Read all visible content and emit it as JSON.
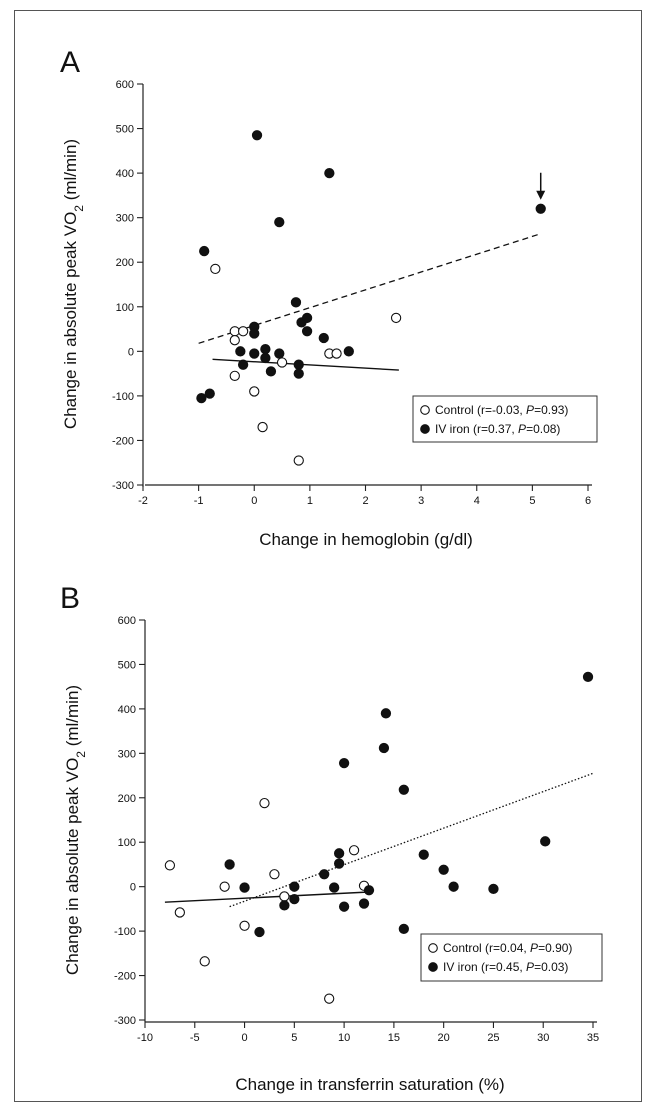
{
  "chart_data": [
    {
      "type": "scatter",
      "panel_label": "A",
      "xlabel": "Change in hemoglobin (g/dl)",
      "ylabel_main": "Change in absolute peak VO",
      "ylabel_sub": "2",
      "ylabel_unit": " (ml/min)",
      "xlim": [
        -2,
        6
      ],
      "ylim": [
        -300,
        600
      ],
      "xticks": [
        -2,
        -1,
        0,
        1,
        2,
        3,
        4,
        5,
        6
      ],
      "yticks": [
        600,
        500,
        400,
        300,
        200,
        100,
        0,
        -100,
        -200,
        -300
      ],
      "legend_position": "bottom-right",
      "series": [
        {
          "name": "Control",
          "name_stats": "Control (r=-0.03, P=0.93)",
          "marker": "open-circle",
          "points": [
            {
              "x": -0.35,
              "y": 45
            },
            {
              "x": -0.35,
              "y": 25
            },
            {
              "x": -0.2,
              "y": 45
            },
            {
              "x": -0.7,
              "y": 185
            },
            {
              "x": -0.35,
              "y": -55
            },
            {
              "x": 0.0,
              "y": -90
            },
            {
              "x": 0.15,
              "y": -170
            },
            {
              "x": 0.5,
              "y": -25
            },
            {
              "x": 0.8,
              "y": -245
            },
            {
              "x": 1.35,
              "y": -5
            },
            {
              "x": 1.48,
              "y": -5
            },
            {
              "x": 2.55,
              "y": 75
            }
          ]
        },
        {
          "name": "IV iron",
          "name_stats": "IV iron (r=0.37, P=0.08)",
          "marker": "filled-circle",
          "points": [
            {
              "x": -0.9,
              "y": 225
            },
            {
              "x": -0.95,
              "y": -105
            },
            {
              "x": -0.8,
              "y": -95
            },
            {
              "x": 0.05,
              "y": 485
            },
            {
              "x": 1.35,
              "y": 400
            },
            {
              "x": 0.45,
              "y": 290
            },
            {
              "x": 5.15,
              "y": 320
            },
            {
              "x": 0.75,
              "y": 110
            },
            {
              "x": 0.85,
              "y": 65
            },
            {
              "x": 0.95,
              "y": 75
            },
            {
              "x": 0.95,
              "y": 45
            },
            {
              "x": 1.25,
              "y": 30
            },
            {
              "x": 1.7,
              "y": 0
            },
            {
              "x": 0.0,
              "y": 55
            },
            {
              "x": 0.0,
              "y": 40
            },
            {
              "x": -0.25,
              "y": 0
            },
            {
              "x": 0.0,
              "y": -5
            },
            {
              "x": 0.2,
              "y": 5
            },
            {
              "x": 0.2,
              "y": -15
            },
            {
              "x": 0.45,
              "y": -5
            },
            {
              "x": -0.2,
              "y": -30
            },
            {
              "x": 0.3,
              "y": -45
            },
            {
              "x": 0.8,
              "y": -30
            },
            {
              "x": 0.8,
              "y": -50
            }
          ]
        }
      ],
      "trendlines": [
        {
          "series": "IV iron",
          "style": "dashed",
          "from": [
            -1.0,
            18
          ],
          "to": [
            5.1,
            262
          ]
        },
        {
          "series": "Control",
          "style": "solid",
          "from": [
            -0.75,
            -18
          ],
          "to": [
            2.6,
            -42
          ]
        }
      ],
      "annotation": {
        "type": "arrow",
        "x": 5.15,
        "y": 320
      }
    },
    {
      "type": "scatter",
      "panel_label": "B",
      "xlabel": "Change in transferrin saturation (%)",
      "ylabel_main": "Change in absolute peak VO",
      "ylabel_sub": "2",
      "ylabel_unit": " (ml/min)",
      "xlim": [
        -10,
        35
      ],
      "ylim": [
        -300,
        600
      ],
      "xticks": [
        -10,
        -5,
        0,
        5,
        10,
        15,
        20,
        25,
        30,
        35
      ],
      "yticks": [
        600,
        500,
        400,
        300,
        200,
        100,
        0,
        -100,
        -200,
        -300
      ],
      "legend_position": "bottom-right",
      "series": [
        {
          "name": "Control",
          "name_stats": "Control (r=0.04, P=0.90)",
          "marker": "open-circle",
          "points": [
            {
              "x": -7.5,
              "y": 48
            },
            {
              "x": -6.5,
              "y": -58
            },
            {
              "x": -2.0,
              "y": 0
            },
            {
              "x": -4.0,
              "y": -168
            },
            {
              "x": 0.0,
              "y": -88
            },
            {
              "x": 2.0,
              "y": 188
            },
            {
              "x": 3.0,
              "y": 28
            },
            {
              "x": 4.0,
              "y": -22
            },
            {
              "x": 8.5,
              "y": -252
            },
            {
              "x": 11.0,
              "y": 82
            },
            {
              "x": 12.0,
              "y": 2
            }
          ]
        },
        {
          "name": "IV iron",
          "name_stats": "IV iron (r=0.45, P=0.03)",
          "marker": "filled-circle",
          "points": [
            {
              "x": -1.5,
              "y": 50
            },
            {
              "x": 0.0,
              "y": -2
            },
            {
              "x": 1.5,
              "y": -102
            },
            {
              "x": 4.0,
              "y": -42
            },
            {
              "x": 5.0,
              "y": 0
            },
            {
              "x": 5.0,
              "y": -28
            },
            {
              "x": 8.0,
              "y": 28
            },
            {
              "x": 9.0,
              "y": -2
            },
            {
              "x": 9.5,
              "y": 52
            },
            {
              "x": 9.5,
              "y": 75
            },
            {
              "x": 10.0,
              "y": -45
            },
            {
              "x": 10.0,
              "y": 278
            },
            {
              "x": 12.0,
              "y": -38
            },
            {
              "x": 12.5,
              "y": -8
            },
            {
              "x": 14.0,
              "y": 312
            },
            {
              "x": 14.2,
              "y": 390
            },
            {
              "x": 16.0,
              "y": 218
            },
            {
              "x": 16.0,
              "y": -95
            },
            {
              "x": 18.0,
              "y": 72
            },
            {
              "x": 20.0,
              "y": 38
            },
            {
              "x": 21.0,
              "y": 0
            },
            {
              "x": 25.0,
              "y": -5
            },
            {
              "x": 30.2,
              "y": 102
            },
            {
              "x": 34.5,
              "y": 472
            }
          ]
        }
      ],
      "trendlines": [
        {
          "series": "IV iron",
          "style": "dotted",
          "from": [
            -1.5,
            -45
          ],
          "to": [
            35,
            255
          ]
        },
        {
          "series": "Control",
          "style": "solid",
          "from": [
            -8.0,
            -35
          ],
          "to": [
            12.5,
            -12
          ]
        }
      ]
    }
  ]
}
